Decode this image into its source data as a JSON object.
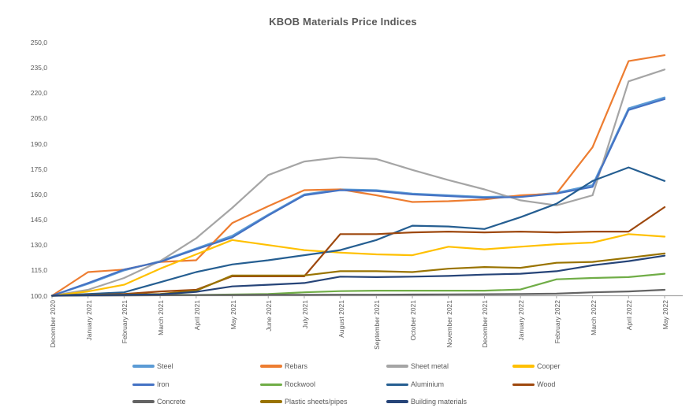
{
  "title": "KBOB Materials Price Indices",
  "colors": {
    "text": "#595959",
    "axis": "#A6A6A6",
    "background": "#FFFFFF"
  },
  "chart_data": {
    "type": "line",
    "title": "KBOB Materials Price Indices",
    "xlabel": "",
    "ylabel": "",
    "ylim": [
      100,
      250
    ],
    "grid": false,
    "legend_position": "bottom",
    "y_tick_labels": [
      "100,0",
      "115,0",
      "130,0",
      "145,0",
      "160,0",
      "175,0",
      "190,0",
      "205,0",
      "220,0",
      "235,0",
      "250,0"
    ],
    "categories": [
      "December 2020",
      "January 2021",
      "February 2021",
      "March 2021",
      "April 2021",
      "May 2021",
      "June 2021",
      "July 2021",
      "August 2021",
      "September 2021",
      "October 2021",
      "November 2021",
      "December 2021",
      "January 2022",
      "February 2022",
      "March 2022",
      "April 2022",
      "May 2022"
    ],
    "series": [
      {
        "name": "Steel",
        "color": "#5B9BD5",
        "values": [
          100,
          107,
          115,
          120.5,
          128,
          135.5,
          148,
          160,
          163,
          162.5,
          160.5,
          159.5,
          158.5,
          159,
          161,
          165.5,
          211,
          217.5
        ]
      },
      {
        "name": "Rebars",
        "color": "#ED7D31",
        "values": [
          100,
          114,
          115.5,
          120,
          121,
          143,
          153,
          162.5,
          163,
          159.5,
          155.5,
          156,
          157,
          159.5,
          160.5,
          188,
          239,
          242.5
        ]
      },
      {
        "name": "Sheet metal",
        "color": "#A5A5A5",
        "values": [
          100,
          103.5,
          110.5,
          120.5,
          134,
          152,
          171.5,
          179.5,
          182,
          181,
          174.5,
          168.5,
          163,
          156.5,
          153.5,
          159.5,
          227,
          234
        ]
      },
      {
        "name": "Cooper",
        "color": "#FFC000",
        "values": [
          100,
          102.5,
          106.5,
          116,
          124.5,
          133,
          130,
          127,
          125.5,
          124.5,
          124,
          129,
          127.5,
          129,
          130.5,
          131.5,
          136.5,
          135
        ]
      },
      {
        "name": "Iron",
        "color": "#4472C4",
        "values": [
          100,
          107.5,
          115.5,
          120,
          127.5,
          134.5,
          147.5,
          159.5,
          162.5,
          162,
          160,
          159,
          158,
          158.5,
          160.5,
          164.5,
          210,
          216.5
        ]
      },
      {
        "name": "Rockwool",
        "color": "#70AD47",
        "values": [
          100,
          100.3,
          100.5,
          100.7,
          100.4,
          100.7,
          101,
          102,
          102.7,
          103,
          103,
          103,
          103,
          103.7,
          109.7,
          110.5,
          111,
          113
        ]
      },
      {
        "name": "Aluminium",
        "color": "#255E91",
        "values": [
          100,
          101,
          102,
          108,
          114,
          118.5,
          121,
          124,
          127,
          133,
          141.5,
          141,
          139.5,
          146.5,
          154.5,
          168,
          176,
          168
        ]
      },
      {
        "name": "Wood",
        "color": "#9E480E",
        "values": [
          100,
          100.5,
          101,
          102.5,
          103.5,
          111.5,
          111.5,
          111.5,
          136.5,
          136.5,
          137.5,
          138,
          137.5,
          138,
          137.5,
          138,
          138,
          152.5
        ]
      },
      {
        "name": "Concrete",
        "color": "#636363",
        "values": [
          100,
          100.1,
          100.2,
          100.3,
          100.4,
          100.4,
          100.5,
          100.5,
          100.6,
          100.6,
          100.7,
          100.8,
          100.9,
          101,
          101.2,
          102,
          102.5,
          103.5
        ]
      },
      {
        "name": "Plastic sheets/pipes",
        "color": "#997300",
        "values": [
          100,
          100.4,
          100.7,
          101,
          103,
          112,
          112,
          112,
          114.5,
          114.5,
          114,
          116,
          117,
          116.5,
          119.5,
          120,
          122.5,
          125
        ]
      },
      {
        "name": "Building materials",
        "color": "#264478",
        "values": [
          100,
          100.3,
          100.5,
          100.8,
          102.3,
          105.5,
          106.5,
          107.5,
          111.3,
          111,
          111.3,
          111.7,
          112.5,
          113,
          114.5,
          118,
          120.5,
          123.7
        ]
      }
    ]
  }
}
